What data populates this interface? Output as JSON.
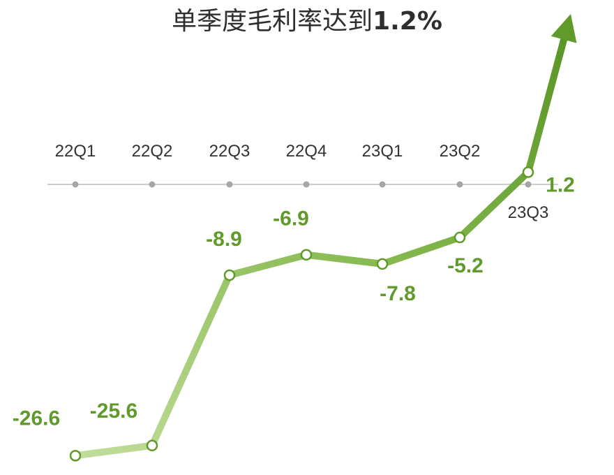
{
  "chart_data": {
    "type": "line",
    "title": "单季度毛利率达到",
    "title_highlight": "1.2%",
    "xlabel": "",
    "ylabel": "",
    "categories": [
      "22Q1",
      "22Q2",
      "22Q3",
      "22Q4",
      "23Q1",
      "23Q2",
      "23Q3"
    ],
    "series": [
      {
        "values": [
          -26.6,
          -25.6,
          -8.9,
          -6.9,
          -7.8,
          -5.2,
          1.2
        ],
        "labels": [
          "-26.6",
          "-25.6",
          "-8.9",
          "-6.9",
          "-7.8",
          "-5.2",
          "1.2"
        ]
      }
    ],
    "grid": false,
    "legend": "none",
    "colors": {
      "line_start": "#b5d68c",
      "line_end": "#5f9a2a",
      "label": "#5f9a2a",
      "zero_line": "#cccccc",
      "tick_dot": "#a6a6a6",
      "title": "#2e2e2e"
    }
  }
}
